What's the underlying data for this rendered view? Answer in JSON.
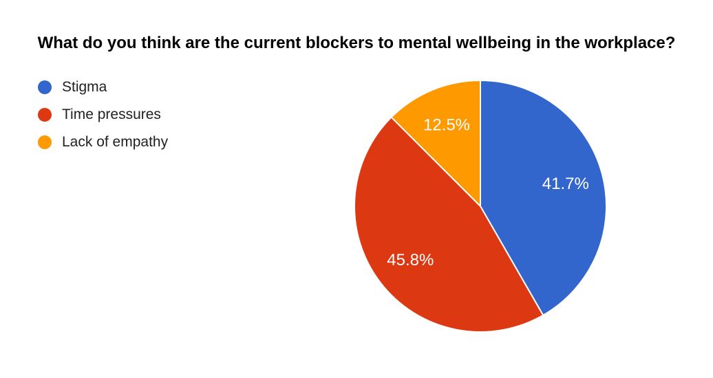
{
  "title": "What do you think are the current blockers to mental wellbeing in the workplace?",
  "legend": {
    "items": [
      {
        "label": "Stigma",
        "color": "#3366CC"
      },
      {
        "label": "Time pressures",
        "color": "#DC3912"
      },
      {
        "label": "Lack of empathy",
        "color": "#FF9900"
      }
    ]
  },
  "chart_data": {
    "type": "pie",
    "title": "What do you think are the current blockers to mental wellbeing in the workplace?",
    "categories": [
      "Stigma",
      "Time pressures",
      "Lack of empathy"
    ],
    "values": [
      41.7,
      45.8,
      12.5
    ],
    "labels": [
      "41.7%",
      "45.8%",
      "12.5%"
    ],
    "colors": [
      "#3366CC",
      "#DC3912",
      "#FF9900"
    ],
    "start_angle_deg": 0,
    "direction": "clockwise",
    "slice_label_color": "#FFFFFF",
    "slice_border_color": "#FFFFFF",
    "legend_position": "top-left",
    "background_color": "#FFFFFF"
  }
}
